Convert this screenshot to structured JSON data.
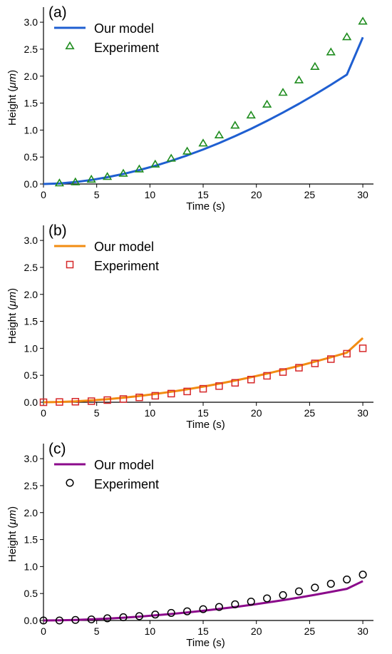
{
  "chart_data": [
    {
      "type": "line",
      "panel_label": "(a)",
      "xlabel": "Time (s)",
      "ylabel_prefix": "Height (",
      "ylabel_unit": "μm",
      "ylabel_suffix": ")",
      "xlim": [
        0,
        31
      ],
      "ylim": [
        0,
        3.2
      ],
      "xticks": [
        0,
        5,
        10,
        15,
        20,
        25,
        30
      ],
      "yticks": [
        0.0,
        0.5,
        1.0,
        1.5,
        2.0,
        2.5,
        3.0
      ],
      "xtick_labels": [
        "0",
        "5",
        "10",
        "15",
        "20",
        "25",
        "30"
      ],
      "ytick_labels": [
        "0.0",
        "0.5",
        "1.0",
        "1.5",
        "2.0",
        "2.5",
        "3.0"
      ],
      "legend_position": "top-left",
      "grid": false,
      "series": [
        {
          "name": "Our model",
          "kind": "line",
          "color": "#1f5fd1",
          "x": [
            0,
            1.5,
            3,
            4.5,
            6,
            7.5,
            9,
            10.5,
            12,
            13.5,
            15,
            16.5,
            18,
            19.5,
            21,
            22.5,
            24,
            25.5,
            27,
            28.5,
            30
          ],
          "y": [
            0,
            0.011,
            0.037,
            0.076,
            0.126,
            0.187,
            0.258,
            0.339,
            0.43,
            0.53,
            0.64,
            0.759,
            0.887,
            1.024,
            1.17,
            1.325,
            1.488,
            1.66,
            1.84,
            2.029,
            2.72
          ]
        },
        {
          "name": "Experiment",
          "kind": "scatter",
          "marker": "triangle",
          "color": "#1e8c1e",
          "x": [
            1.5,
            3,
            4.5,
            6,
            7.5,
            9,
            10.5,
            12,
            13.5,
            15,
            16.5,
            18,
            19.5,
            21,
            22.5,
            24,
            25.5,
            27,
            28.5,
            30
          ],
          "y": [
            0.01,
            0.03,
            0.08,
            0.13,
            0.19,
            0.27,
            0.36,
            0.47,
            0.6,
            0.75,
            0.9,
            1.08,
            1.27,
            1.47,
            1.69,
            1.92,
            2.17,
            2.44,
            2.72,
            3.01
          ]
        }
      ]
    },
    {
      "type": "line",
      "panel_label": "(b)",
      "xlabel": "Time (s)",
      "ylabel_prefix": "Height (",
      "ylabel_unit": "μm",
      "ylabel_suffix": ")",
      "xlim": [
        0,
        31
      ],
      "ylim": [
        0,
        3.2
      ],
      "xticks": [
        0,
        5,
        10,
        15,
        20,
        25,
        30
      ],
      "yticks": [
        0.0,
        0.5,
        1.0,
        1.5,
        2.0,
        2.5,
        3.0
      ],
      "xtick_labels": [
        "0",
        "5",
        "10",
        "15",
        "20",
        "25",
        "30"
      ],
      "ytick_labels": [
        "0.0",
        "0.5",
        "1.0",
        "1.5",
        "2.0",
        "2.5",
        "3.0"
      ],
      "legend_position": "top-left",
      "grid": false,
      "series": [
        {
          "name": "Our model",
          "kind": "line",
          "color": "#f28c12",
          "x": [
            0,
            1.5,
            3,
            4.5,
            6,
            7.5,
            9,
            10.5,
            12,
            13.5,
            15,
            16.5,
            18,
            19.5,
            21,
            22.5,
            24,
            25.5,
            27,
            28.5,
            30
          ],
          "y": [
            0,
            0.005,
            0.016,
            0.034,
            0.057,
            0.085,
            0.117,
            0.154,
            0.195,
            0.24,
            0.29,
            0.344,
            0.402,
            0.464,
            0.53,
            0.6,
            0.674,
            0.752,
            0.834,
            0.92,
            1.19
          ]
        },
        {
          "name": "Experiment",
          "kind": "scatter",
          "marker": "square",
          "color": "#d62728",
          "x": [
            0,
            1.5,
            3,
            4.5,
            6,
            7.5,
            9,
            10.5,
            12,
            13.5,
            15,
            16.5,
            18,
            19.5,
            21,
            22.5,
            24,
            25.5,
            27,
            28.5,
            30
          ],
          "y": [
            0.0,
            0.005,
            0.01,
            0.02,
            0.04,
            0.06,
            0.09,
            0.12,
            0.16,
            0.2,
            0.25,
            0.3,
            0.36,
            0.42,
            0.49,
            0.56,
            0.64,
            0.72,
            0.8,
            0.9,
            1.0
          ]
        }
      ]
    },
    {
      "type": "line",
      "panel_label": "(c)",
      "xlabel": "Time (s)",
      "ylabel_prefix": "Height (",
      "ylabel_unit": "μm",
      "ylabel_suffix": ")",
      "xlim": [
        0,
        31
      ],
      "ylim": [
        0,
        3.2
      ],
      "xticks": [
        0,
        5,
        10,
        15,
        20,
        25,
        30
      ],
      "yticks": [
        0.0,
        0.5,
        1.0,
        1.5,
        2.0,
        2.5,
        3.0
      ],
      "xtick_labels": [
        "0",
        "5",
        "10",
        "15",
        "20",
        "25",
        "30"
      ],
      "ytick_labels": [
        "0.0",
        "0.5",
        "1.0",
        "1.5",
        "2.0",
        "2.5",
        "3.0"
      ],
      "legend_position": "top-left",
      "grid": false,
      "series": [
        {
          "name": "Our model",
          "kind": "line",
          "color": "#8b0a8b",
          "x": [
            0,
            1.5,
            3,
            4.5,
            6,
            7.5,
            9,
            10.5,
            12,
            13.5,
            15,
            16.5,
            18,
            19.5,
            21,
            22.5,
            24,
            25.5,
            27,
            28.5,
            30
          ],
          "y": [
            0,
            0.003,
            0.01,
            0.021,
            0.035,
            0.052,
            0.072,
            0.095,
            0.12,
            0.149,
            0.18,
            0.214,
            0.25,
            0.29,
            0.332,
            0.377,
            0.425,
            0.476,
            0.53,
            0.587,
            0.73
          ]
        },
        {
          "name": "Experiment",
          "kind": "scatter",
          "marker": "circle",
          "color": "#000000",
          "x": [
            0,
            1.5,
            3,
            4.5,
            6,
            7.5,
            9,
            10.5,
            12,
            13.5,
            15,
            16.5,
            18,
            19.5,
            21,
            22.5,
            24,
            25.5,
            27,
            28.5,
            30
          ],
          "y": [
            0.0,
            0.0,
            0.01,
            0.02,
            0.04,
            0.06,
            0.08,
            0.11,
            0.14,
            0.17,
            0.21,
            0.25,
            0.3,
            0.35,
            0.41,
            0.47,
            0.54,
            0.61,
            0.68,
            0.76,
            0.85
          ]
        }
      ]
    }
  ]
}
